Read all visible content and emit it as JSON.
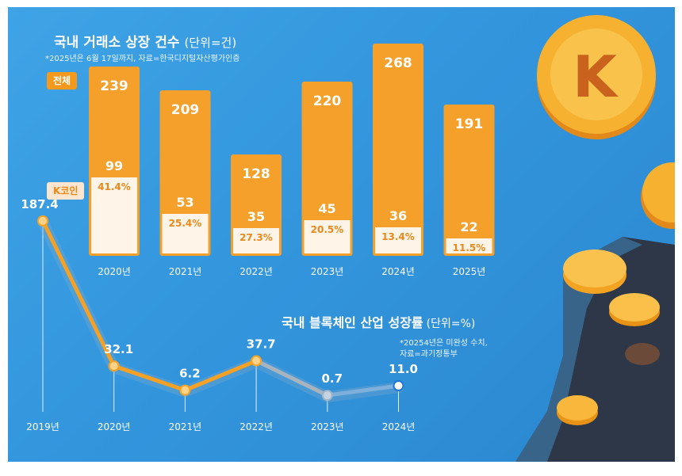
{
  "chart_data": [
    {
      "type": "bar",
      "title": "국내 거래소 상장 건수",
      "unit": "(단위=건)",
      "note": "*2025년은 6월 17일까지, 자료=한국디지털자산평가인증",
      "categories": [
        "2020년",
        "2021년",
        "2022년",
        "2023년",
        "2024년",
        "2025년"
      ],
      "series": [
        {
          "name": "전체",
          "values": [
            239,
            209,
            128,
            220,
            268,
            191
          ]
        },
        {
          "name": "K코인",
          "values": [
            99,
            53,
            35,
            45,
            36,
            22
          ]
        }
      ],
      "share_labels": [
        "41.4%",
        "25.4%",
        "27.3%",
        "20.5%",
        "13.4%",
        "11.5%"
      ],
      "colors": {
        "total": "#f5a02a",
        "kcoin": "#fff4e8",
        "label": "#e8891c"
      }
    },
    {
      "type": "line",
      "title": "국내 블록체인 산업 성장률",
      "unit": "(단위=%)",
      "note": [
        "*20254년은 미완성 수치,",
        "자료=과기정통부"
      ],
      "x": [
        "2019년",
        "2020년",
        "2021년",
        "2022년",
        "2023년",
        "2024년"
      ],
      "values": [
        187.4,
        32.1,
        6.2,
        37.7,
        0.7,
        11.0
      ],
      "value_labels": [
        "187.4",
        "32.1",
        "6.2",
        "37.7",
        "0.7",
        "11.0"
      ],
      "colors": {
        "line": "#f4a125",
        "fade": "#8fb3d6",
        "end": "#1b78d6"
      }
    }
  ]
}
